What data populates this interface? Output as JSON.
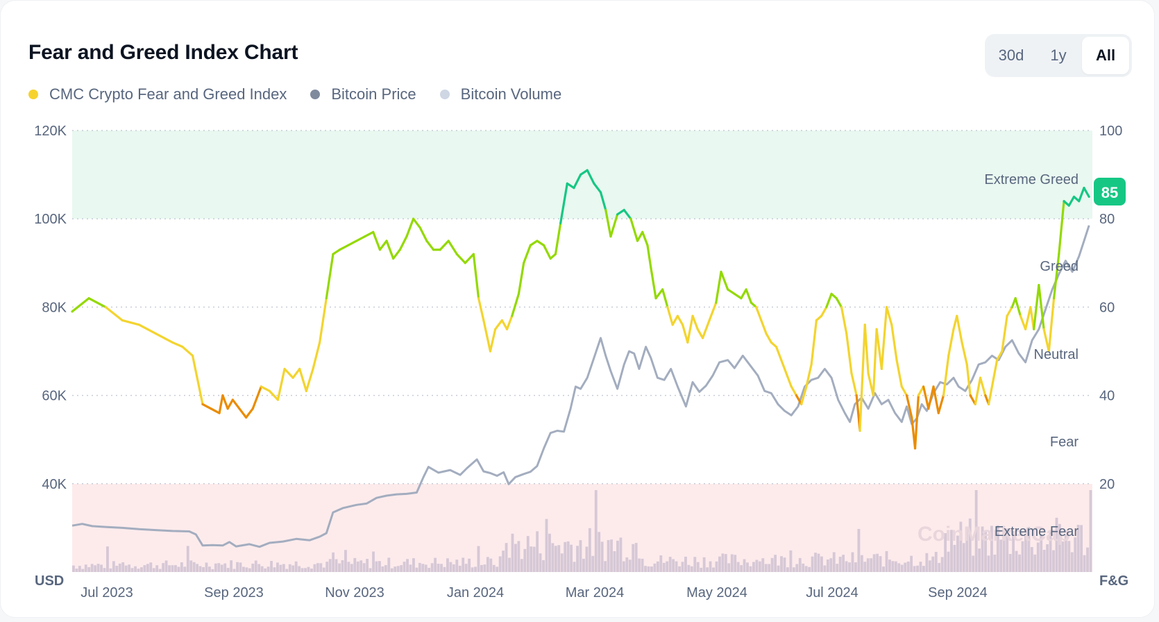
{
  "header": {
    "title": "Fear and Greed Index Chart",
    "ranges": [
      "30d",
      "1y",
      "All"
    ],
    "active_range": "All"
  },
  "legend": [
    {
      "label": "CMC Crypto Fear and Greed Index",
      "color": "#f6d32c"
    },
    {
      "label": "Bitcoin Price",
      "color": "#808a9d"
    },
    {
      "label": "Bitcoin Volume",
      "color": "#cfd6e4"
    }
  ],
  "watermark": "CoinMarketCap",
  "chart_data": {
    "type": "line",
    "x_ticks": [
      "Jul 2023",
      "Sep 2023",
      "Nov 2023",
      "Jan 2024",
      "Mar 2024",
      "May 2024",
      "Jul 2024",
      "Sep 2024"
    ],
    "left_axis": {
      "unit": "USD",
      "ticks": [
        "120K",
        "100K",
        "80K",
        "60K",
        "40K"
      ],
      "range": [
        20000,
        120000
      ]
    },
    "right_axis": {
      "unit": "F&G",
      "ticks": [
        "100",
        "80",
        "60",
        "40",
        "20"
      ],
      "range": [
        0,
        100
      ]
    },
    "zones": [
      {
        "label": "Extreme Greed",
        "from": 80,
        "to": 100,
        "color": "#e9f8f0"
      },
      {
        "label": "Greed",
        "from": 60,
        "to": 80
      },
      {
        "label": "Neutral",
        "from": 40,
        "to": 60
      },
      {
        "label": "Fear",
        "from": 20,
        "to": 40
      },
      {
        "label": "Extreme Fear",
        "from": 0,
        "to": 20,
        "color": "#fdebec"
      }
    ],
    "current_value": 85,
    "current_color": "#16c784",
    "grid": "dotted",
    "series": [
      {
        "name": "CMC Crypto Fear and Greed Index",
        "axis": "right",
        "points": [
          [
            0,
            59
          ],
          [
            1,
            62
          ],
          [
            2,
            60
          ],
          [
            3,
            57
          ],
          [
            4,
            56
          ],
          [
            5,
            54
          ],
          [
            5.5,
            53
          ],
          [
            6,
            52
          ],
          [
            6.6,
            51
          ],
          [
            7.2,
            49
          ],
          [
            7.8,
            38
          ],
          [
            8.3,
            37
          ],
          [
            8.8,
            36
          ],
          [
            9,
            40
          ],
          [
            9.3,
            37
          ],
          [
            9.6,
            39
          ],
          [
            10,
            37
          ],
          [
            10.4,
            35
          ],
          [
            10.8,
            37
          ],
          [
            11.3,
            42
          ],
          [
            11.8,
            41
          ],
          [
            12.3,
            39
          ],
          [
            12.7,
            46
          ],
          [
            13.2,
            44
          ],
          [
            13.6,
            46
          ],
          [
            14,
            41
          ],
          [
            14.4,
            46
          ],
          [
            14.8,
            52
          ],
          [
            15.2,
            62
          ],
          [
            15.6,
            72
          ],
          [
            16,
            73
          ],
          [
            16.5,
            74
          ],
          [
            17,
            75
          ],
          [
            17.5,
            76
          ],
          [
            18,
            77
          ],
          [
            18.4,
            73
          ],
          [
            18.8,
            75
          ],
          [
            19.2,
            71
          ],
          [
            19.6,
            73
          ],
          [
            20,
            76
          ],
          [
            20.4,
            80
          ],
          [
            20.8,
            78
          ],
          [
            21.2,
            75
          ],
          [
            21.6,
            73
          ],
          [
            22,
            73
          ],
          [
            22.5,
            75
          ],
          [
            23,
            72
          ],
          [
            23.5,
            70
          ],
          [
            24,
            72
          ],
          [
            24.3,
            62
          ],
          [
            24.6,
            57
          ],
          [
            25,
            50
          ],
          [
            25.3,
            55
          ],
          [
            25.7,
            57
          ],
          [
            26,
            55
          ],
          [
            26.3,
            58
          ],
          [
            26.7,
            63
          ],
          [
            27,
            70
          ],
          [
            27.4,
            74
          ],
          [
            27.8,
            75
          ],
          [
            28.2,
            74
          ],
          [
            28.6,
            71
          ],
          [
            28.9,
            72
          ],
          [
            29.2,
            79
          ],
          [
            29.6,
            88
          ],
          [
            30,
            87
          ],
          [
            30.4,
            90
          ],
          [
            30.8,
            91
          ],
          [
            31.2,
            88
          ],
          [
            31.6,
            86
          ],
          [
            31.9,
            82
          ],
          [
            32.2,
            76
          ],
          [
            32.6,
            81
          ],
          [
            33,
            82
          ],
          [
            33.4,
            80
          ],
          [
            33.8,
            75
          ],
          [
            34.1,
            77
          ],
          [
            34.4,
            74
          ],
          [
            34.6,
            69
          ],
          [
            34.9,
            62
          ],
          [
            35.3,
            64
          ],
          [
            35.6,
            60
          ],
          [
            35.9,
            56
          ],
          [
            36.2,
            58
          ],
          [
            36.5,
            56
          ],
          [
            36.8,
            52
          ],
          [
            37.1,
            58
          ],
          [
            37.4,
            55
          ],
          [
            37.7,
            53
          ],
          [
            38.1,
            57
          ],
          [
            38.5,
            61
          ],
          [
            38.8,
            68
          ],
          [
            39.2,
            64
          ],
          [
            39.6,
            63
          ],
          [
            40,
            62
          ],
          [
            40.3,
            64
          ],
          [
            40.6,
            61
          ],
          [
            40.9,
            60
          ],
          [
            41.2,
            57
          ],
          [
            41.5,
            54
          ],
          [
            41.8,
            52
          ],
          [
            42.1,
            51
          ],
          [
            42.4,
            48
          ],
          [
            42.7,
            45
          ],
          [
            43,
            42
          ],
          [
            43.3,
            40
          ],
          [
            43.6,
            38
          ],
          [
            43.9,
            42
          ],
          [
            44.2,
            47
          ],
          [
            44.5,
            57
          ],
          [
            44.8,
            58
          ],
          [
            45.1,
            60
          ],
          [
            45.4,
            63
          ],
          [
            45.7,
            62
          ],
          [
            46,
            60
          ],
          [
            46.3,
            54
          ],
          [
            46.6,
            45
          ],
          [
            46.9,
            40
          ],
          [
            47.1,
            32
          ],
          [
            47.4,
            56
          ],
          [
            47.6,
            45
          ],
          [
            47.9,
            40
          ],
          [
            48.1,
            55
          ],
          [
            48.4,
            46
          ],
          [
            48.7,
            60
          ],
          [
            49,
            56
          ],
          [
            49.3,
            48
          ],
          [
            49.6,
            42
          ],
          [
            49.9,
            40
          ],
          [
            50.2,
            35
          ],
          [
            50.4,
            28
          ],
          [
            50.6,
            40
          ],
          [
            50.9,
            42
          ],
          [
            51.2,
            37
          ],
          [
            51.5,
            42
          ],
          [
            51.8,
            36
          ],
          [
            52.1,
            40
          ],
          [
            52.4,
            49
          ],
          [
            52.7,
            55
          ],
          [
            52.9,
            58
          ],
          [
            53.2,
            52
          ],
          [
            53.5,
            47
          ],
          [
            53.7,
            40
          ],
          [
            54,
            38
          ],
          [
            54.3,
            44
          ],
          [
            54.6,
            40
          ],
          [
            54.8,
            38
          ],
          [
            55.1,
            44
          ],
          [
            55.3,
            48
          ],
          [
            55.6,
            50
          ],
          [
            55.9,
            58
          ],
          [
            56.2,
            60
          ],
          [
            56.4,
            62
          ],
          [
            56.7,
            58
          ],
          [
            57,
            55
          ],
          [
            57.3,
            60
          ],
          [
            57.5,
            55
          ],
          [
            57.8,
            65
          ],
          [
            58.1,
            55
          ],
          [
            58.4,
            50
          ],
          [
            58.7,
            62
          ],
          [
            59,
            72
          ],
          [
            59.3,
            84
          ],
          [
            59.6,
            83
          ],
          [
            59.9,
            85
          ],
          [
            60.2,
            84
          ],
          [
            60.5,
            87
          ],
          [
            60.8,
            85
          ]
        ]
      },
      {
        "name": "Bitcoin Price",
        "axis": "left",
        "points": [
          [
            0,
            30500
          ],
          [
            0.6,
            30900
          ],
          [
            1.2,
            30400
          ],
          [
            2,
            30200
          ],
          [
            3,
            30000
          ],
          [
            4,
            29700
          ],
          [
            5,
            29500
          ],
          [
            6,
            29300
          ],
          [
            7,
            29200
          ],
          [
            7.4,
            28500
          ],
          [
            7.8,
            26000
          ],
          [
            8.4,
            26100
          ],
          [
            9,
            26000
          ],
          [
            9.4,
            26800
          ],
          [
            9.8,
            25800
          ],
          [
            10.6,
            26300
          ],
          [
            11.2,
            25700
          ],
          [
            11.8,
            26600
          ],
          [
            12.6,
            26900
          ],
          [
            13.4,
            27500
          ],
          [
            14.2,
            27200
          ],
          [
            14.8,
            28000
          ],
          [
            15.2,
            28800
          ],
          [
            15.6,
            33500
          ],
          [
            16.2,
            34500
          ],
          [
            17,
            35200
          ],
          [
            17.6,
            35500
          ],
          [
            18.2,
            36800
          ],
          [
            18.8,
            37300
          ],
          [
            19.4,
            37600
          ],
          [
            20,
            37700
          ],
          [
            20.6,
            38000
          ],
          [
            21,
            41500
          ],
          [
            21.3,
            43800
          ],
          [
            21.9,
            42500
          ],
          [
            22.6,
            43100
          ],
          [
            23.2,
            42000
          ],
          [
            23.6,
            43500
          ],
          [
            24.2,
            45500
          ],
          [
            24.6,
            42800
          ],
          [
            25,
            42400
          ],
          [
            25.4,
            41800
          ],
          [
            25.8,
            42600
          ],
          [
            26.1,
            39900
          ],
          [
            26.5,
            41500
          ],
          [
            27,
            42200
          ],
          [
            27.4,
            42700
          ],
          [
            27.8,
            44000
          ],
          [
            28.2,
            48000
          ],
          [
            28.6,
            51500
          ],
          [
            29,
            52000
          ],
          [
            29.4,
            51800
          ],
          [
            29.8,
            57000
          ],
          [
            30.1,
            62000
          ],
          [
            30.4,
            61500
          ],
          [
            30.8,
            64000
          ],
          [
            31.2,
            68500
          ],
          [
            31.6,
            73000
          ],
          [
            31.9,
            69000
          ],
          [
            32.2,
            65500
          ],
          [
            32.6,
            61500
          ],
          [
            33,
            67000
          ],
          [
            33.3,
            70000
          ],
          [
            33.6,
            69500
          ],
          [
            33.9,
            66000
          ],
          [
            34.3,
            71000
          ],
          [
            34.6,
            68500
          ],
          [
            35,
            64000
          ],
          [
            35.4,
            63500
          ],
          [
            35.8,
            66000
          ],
          [
            36.2,
            62000
          ],
          [
            36.7,
            57500
          ],
          [
            37.1,
            63000
          ],
          [
            37.5,
            60800
          ],
          [
            37.9,
            62200
          ],
          [
            38.3,
            64500
          ],
          [
            38.7,
            67500
          ],
          [
            39.2,
            68000
          ],
          [
            39.6,
            66200
          ],
          [
            40.1,
            69000
          ],
          [
            40.6,
            66500
          ],
          [
            41,
            64500
          ],
          [
            41.4,
            61000
          ],
          [
            41.8,
            60500
          ],
          [
            42.2,
            58000
          ],
          [
            42.6,
            56500
          ],
          [
            43,
            55500
          ],
          [
            43.4,
            57500
          ],
          [
            43.8,
            62000
          ],
          [
            44.2,
            63500
          ],
          [
            44.6,
            64000
          ],
          [
            45,
            66000
          ],
          [
            45.4,
            64000
          ],
          [
            45.8,
            59000
          ],
          [
            46.2,
            56000
          ],
          [
            46.5,
            54000
          ],
          [
            46.8,
            58000
          ],
          [
            47.2,
            59500
          ],
          [
            47.6,
            57000
          ],
          [
            48,
            60500
          ],
          [
            48.4,
            58000
          ],
          [
            48.8,
            59000
          ],
          [
            49.2,
            56000
          ],
          [
            49.6,
            54000
          ],
          [
            49.9,
            57500
          ],
          [
            50.2,
            53500
          ],
          [
            50.5,
            54800
          ],
          [
            50.8,
            58000
          ],
          [
            51.1,
            56500
          ],
          [
            51.5,
            60500
          ],
          [
            51.9,
            63000
          ],
          [
            52.3,
            62500
          ],
          [
            52.7,
            64000
          ],
          [
            53,
            62000
          ],
          [
            53.4,
            61000
          ],
          [
            53.8,
            63500
          ],
          [
            54.2,
            67000
          ],
          [
            54.6,
            67500
          ],
          [
            55,
            69000
          ],
          [
            55.4,
            68000
          ],
          [
            55.8,
            71000
          ],
          [
            56.2,
            72500
          ],
          [
            56.6,
            69500
          ],
          [
            57,
            67500
          ],
          [
            57.4,
            72500
          ],
          [
            57.8,
            75000
          ],
          [
            58.2,
            79500
          ],
          [
            58.6,
            84000
          ],
          [
            59,
            87500
          ],
          [
            59.4,
            90500
          ],
          [
            59.8,
            88000
          ],
          [
            60.2,
            91500
          ],
          [
            60.5,
            95000
          ],
          [
            60.8,
            98500
          ]
        ]
      },
      {
        "name": "Bitcoin Volume",
        "axis": "volume"
      }
    ],
    "x_max": 61
  }
}
